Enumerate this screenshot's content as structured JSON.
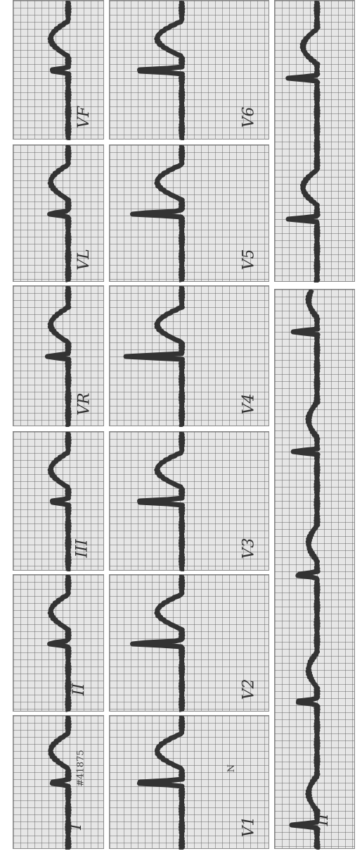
{
  "leads": [
    {
      "label": "I",
      "note": "#41875"
    },
    {
      "label": "II"
    },
    {
      "label": "III"
    },
    {
      "label": "VR"
    },
    {
      "label": "VL"
    },
    {
      "label": "VF"
    },
    {
      "label": "V1",
      "note": "N"
    },
    {
      "label": "V2"
    },
    {
      "label": "V3"
    },
    {
      "label": "V4"
    },
    {
      "label": "V5"
    },
    {
      "label": "V6"
    }
  ],
  "rhythm_strip": {
    "label": "II"
  }
}
